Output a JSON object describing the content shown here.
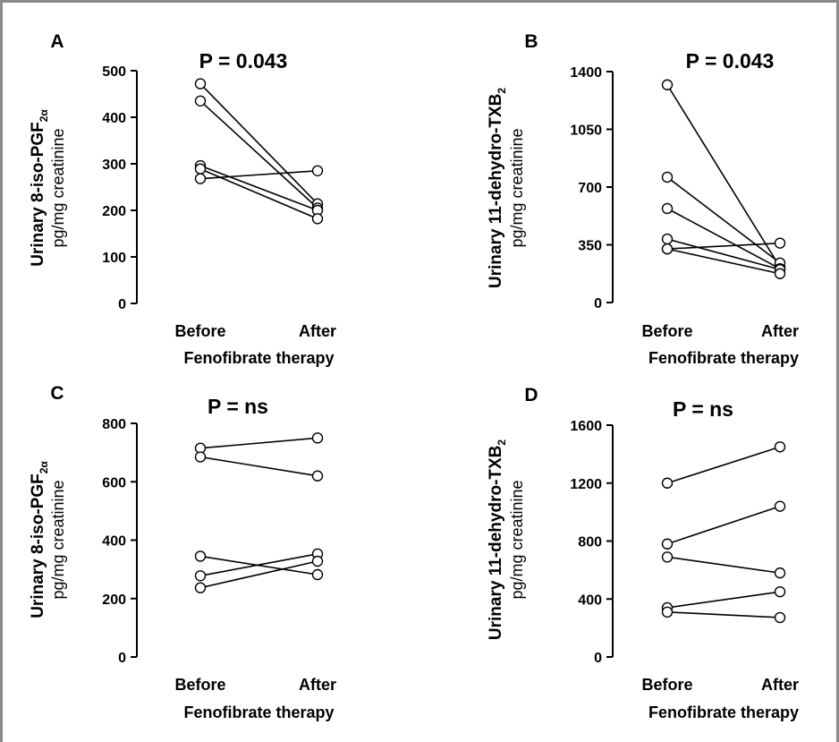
{
  "chart_data": [
    {
      "type": "line",
      "panel": "A",
      "title": "P = 0.043",
      "ylabel_main": "Urinary 8-iso-PGF",
      "ylabel_sub": "2α",
      "ylabel_unit": "pg/mg creatinine",
      "xlabel": "Fenofibrate therapy",
      "categories": [
        "Before",
        "After"
      ],
      "ylim": [
        0,
        500
      ],
      "yticks": [
        "0",
        "100",
        "200",
        "300",
        "400",
        "500"
      ],
      "series": [
        {
          "values": [
            472,
            214
          ]
        },
        {
          "values": [
            435,
            205
          ]
        },
        {
          "values": [
            296,
            200
          ]
        },
        {
          "values": [
            289,
            182
          ]
        },
        {
          "values": [
            268,
            285
          ]
        }
      ]
    },
    {
      "type": "line",
      "panel": "B",
      "title": "P = 0.043",
      "ylabel_main": "Urinary 11-dehydro-TXB",
      "ylabel_sub": "2",
      "ylabel_unit": "pg/mg creatinine",
      "xlabel": "Fenofibrate therapy",
      "categories": [
        "Before",
        "After"
      ],
      "ylim": [
        0,
        1400
      ],
      "yticks": [
        "0",
        "350",
        "700",
        "1050",
        "1400"
      ],
      "series": [
        {
          "values": [
            1320,
            215
          ]
        },
        {
          "values": [
            760,
            240
          ]
        },
        {
          "values": [
            570,
            205
          ]
        },
        {
          "values": [
            385,
            200
          ]
        },
        {
          "values": [
            325,
            175
          ]
        },
        {
          "values": [
            325,
            360
          ]
        }
      ]
    },
    {
      "type": "line",
      "panel": "C",
      "title": "P = ns",
      "ylabel_main": "Urinary 8-iso-PGF",
      "ylabel_sub": "2α",
      "ylabel_unit": "pg/mg creatinine",
      "xlabel": "Fenofibrate therapy",
      "categories": [
        "Before",
        "After"
      ],
      "ylim": [
        0,
        800
      ],
      "yticks": [
        "0",
        "200",
        "400",
        "600",
        "800"
      ],
      "series": [
        {
          "values": [
            715,
            750
          ]
        },
        {
          "values": [
            685,
            620
          ]
        },
        {
          "values": [
            345,
            282
          ]
        },
        {
          "values": [
            278,
            353
          ]
        },
        {
          "values": [
            237,
            328
          ]
        }
      ]
    },
    {
      "type": "line",
      "panel": "D",
      "title": "P = ns",
      "ylabel_main": "Urinary 11-dehydro-TXB",
      "ylabel_sub": "2",
      "ylabel_unit": "pg/mg creatinine",
      "xlabel": "Fenofibrate therapy",
      "categories": [
        "Before",
        "After"
      ],
      "ylim": [
        0,
        1600
      ],
      "yticks": [
        "0",
        "400",
        "800",
        "1200",
        "1600"
      ],
      "series": [
        {
          "values": [
            1200,
            1450
          ]
        },
        {
          "values": [
            780,
            1040
          ]
        },
        {
          "values": [
            690,
            580
          ]
        },
        {
          "values": [
            340,
            450
          ]
        },
        {
          "values": [
            310,
            272
          ]
        }
      ]
    }
  ]
}
